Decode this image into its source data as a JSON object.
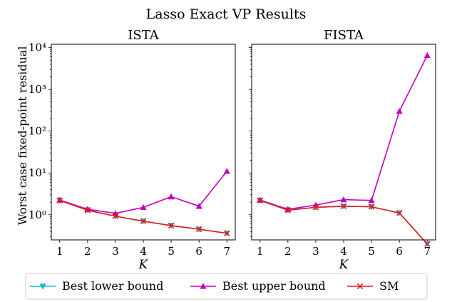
{
  "figure": {
    "title": "Lasso Exact VP Results",
    "ylabel": "Worst case fixed-point residual"
  },
  "chart_data": [
    {
      "type": "line",
      "title": "ISTA",
      "xlabel": "K",
      "ylabel": "Worst case fixed-point residual",
      "yscale": "log",
      "x": [
        1,
        2,
        3,
        4,
        5,
        6,
        7
      ],
      "xlim": [
        0.7,
        7.3
      ],
      "ylim": [
        0.25,
        12000
      ],
      "series": [
        {
          "name": "Best lower bound",
          "values": [
            2.2,
            1.3,
            0.92,
            0.7,
            0.55,
            0.45,
            0.36
          ],
          "color": "#17becf",
          "marker": "triangle-down"
        },
        {
          "name": "Best upper bound",
          "values": [
            2.25,
            1.35,
            1.08,
            1.5,
            2.7,
            1.6,
            11.0
          ],
          "color": "#c000c0",
          "marker": "triangle-up"
        },
        {
          "name": "SM",
          "values": [
            2.2,
            1.28,
            0.92,
            0.7,
            0.55,
            0.45,
            0.36
          ],
          "color": "#e41a1c",
          "marker": "x"
        }
      ]
    },
    {
      "type": "line",
      "title": "FISTA",
      "xlabel": "K",
      "yscale": "log",
      "x": [
        1,
        2,
        3,
        4,
        5,
        6,
        7
      ],
      "xlim": [
        0.7,
        7.3
      ],
      "ylim": [
        0.25,
        12000
      ],
      "series": [
        {
          "name": "Best lower bound",
          "values": [
            2.2,
            1.3,
            1.5,
            1.6,
            1.55,
            1.1,
            0.2
          ],
          "color": "#17becf",
          "marker": "triangle-down"
        },
        {
          "name": "Best upper bound",
          "values": [
            2.25,
            1.35,
            1.7,
            2.3,
            2.2,
            300,
            6500
          ],
          "color": "#c000c0",
          "marker": "triangle-up"
        },
        {
          "name": "SM",
          "values": [
            2.2,
            1.28,
            1.5,
            1.6,
            1.55,
            1.1,
            0.2
          ],
          "color": "#e41a1c",
          "marker": "x"
        }
      ]
    }
  ],
  "y_ticks": [
    {
      "value": 1,
      "label": "10⁰"
    },
    {
      "value": 10,
      "label": "10¹"
    },
    {
      "value": 100,
      "label": "10²"
    },
    {
      "value": 1000,
      "label": "10³"
    },
    {
      "value": 10000,
      "label": "10⁴"
    }
  ],
  "legend": {
    "placement": "bottom",
    "items": [
      {
        "label": "Best lower bound",
        "color": "#17becf",
        "marker": "triangle-down"
      },
      {
        "label": "Best upper bound",
        "color": "#c000c0",
        "marker": "triangle-up"
      },
      {
        "label": "SM",
        "color": "#e41a1c",
        "marker": "x"
      }
    ]
  }
}
